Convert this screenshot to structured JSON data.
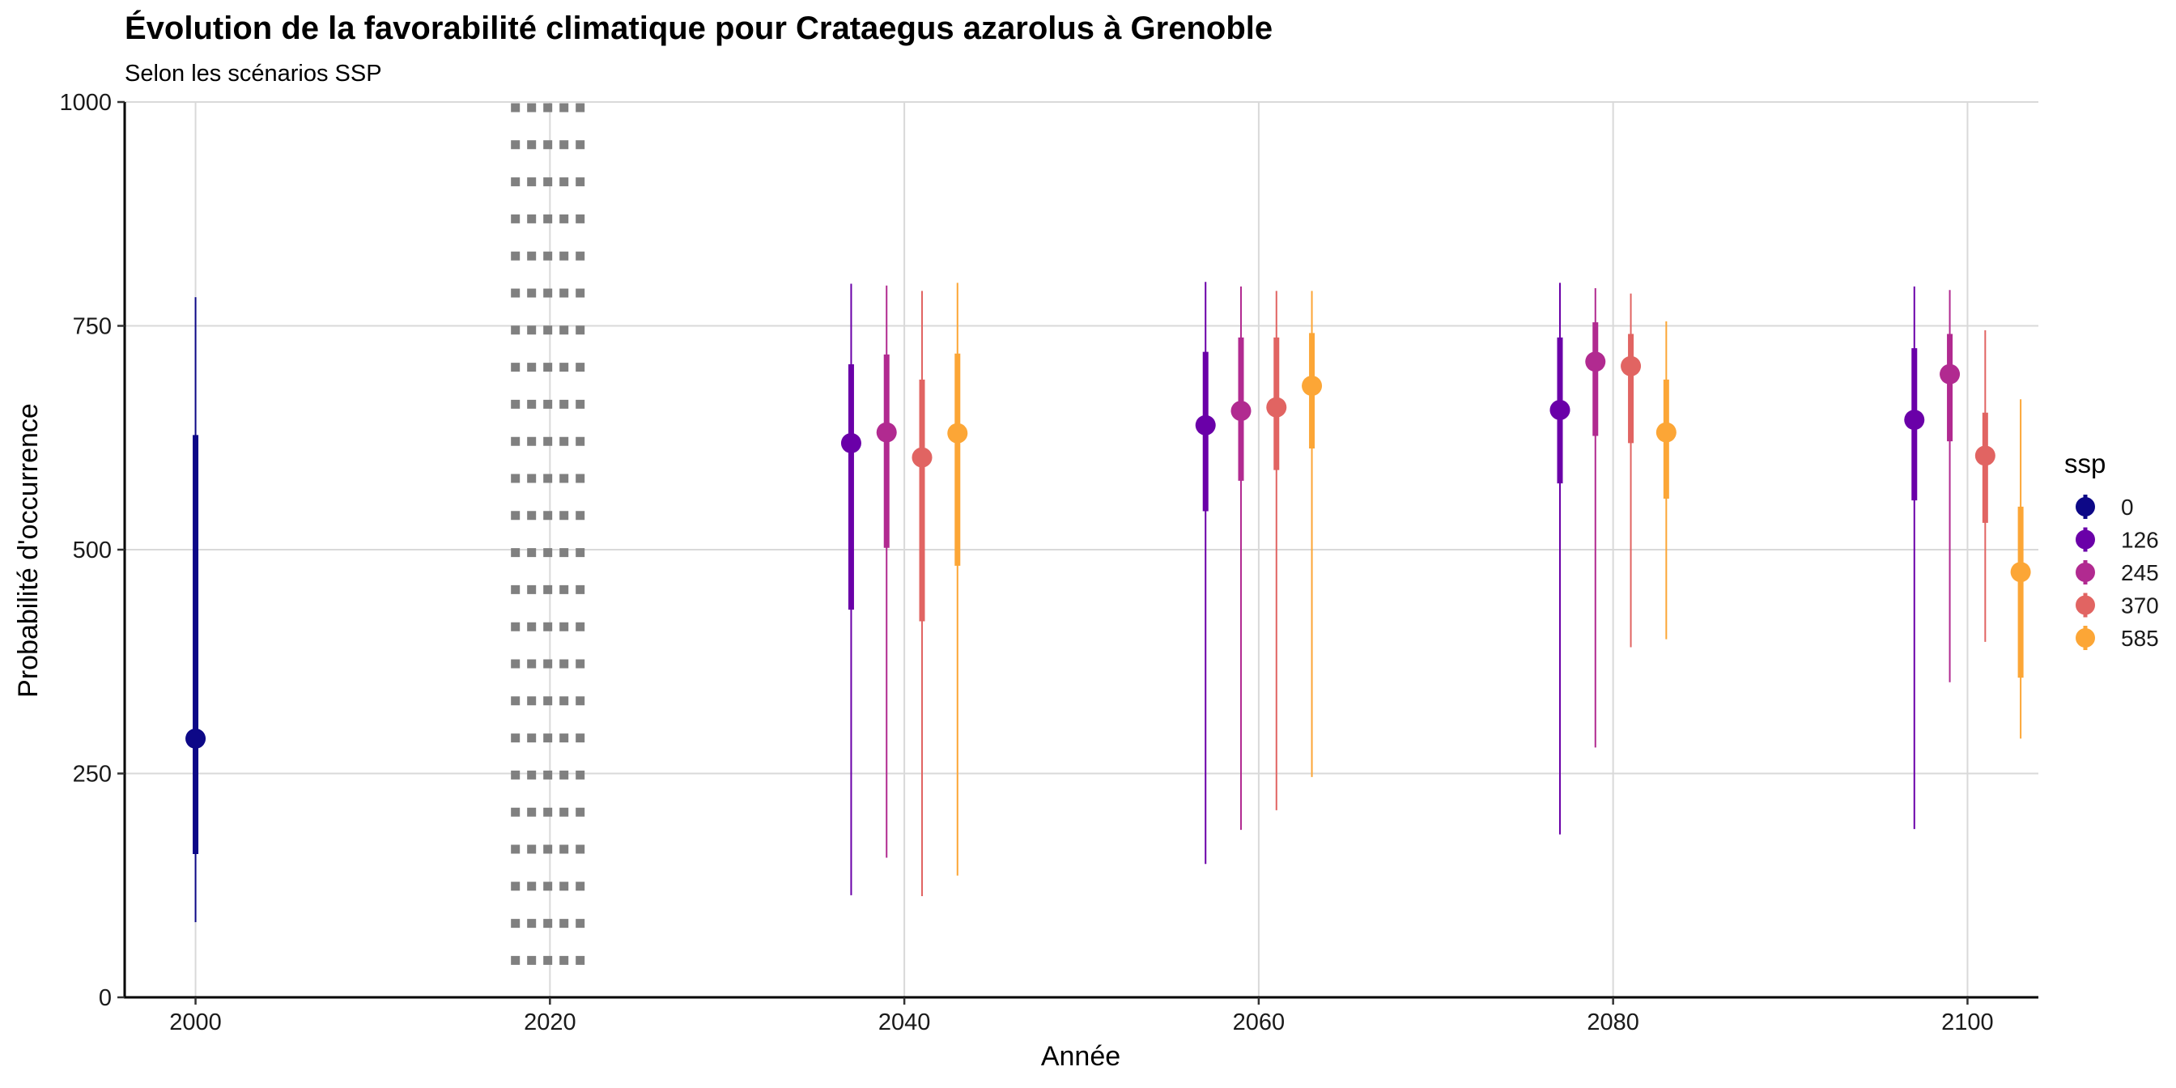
{
  "chart_data": {
    "type": "pointrange",
    "title": "Évolution de la favorabilité climatique pour Crataegus azarolus à Grenoble",
    "subtitle": "Selon les scénarios SSP",
    "xlabel": "Année",
    "ylabel": "Probabilité d'occurrence",
    "xlim": [
      1996,
      2104
    ],
    "ylim": [
      0,
      1000
    ],
    "x_ticks": [
      2000,
      2020,
      2040,
      2060,
      2080,
      2100
    ],
    "y_ticks": [
      0,
      250,
      500,
      750,
      1000
    ],
    "grid": true,
    "reference_band": {
      "x_from": 2017.8,
      "x_to": 2022.2
    },
    "legend": {
      "title": "ssp",
      "position": "right",
      "items": [
        {
          "label": "0",
          "color": "#0d0887"
        },
        {
          "label": "126",
          "color": "#6a00a8"
        },
        {
          "label": "245",
          "color": "#b12a90"
        },
        {
          "label": "370",
          "color": "#e16462"
        },
        {
          "label": "585",
          "color": "#fca636"
        }
      ]
    },
    "series": [
      {
        "name": "0",
        "color": "#0d0887",
        "points": [
          {
            "x": 2000,
            "y": 289,
            "inner": [
              160,
              628
            ],
            "outer": [
              84,
              782
            ]
          }
        ]
      },
      {
        "name": "126",
        "color": "#6a00a8",
        "points": [
          {
            "x": 2037,
            "y": 619,
            "inner": [
              433,
              707
            ],
            "outer": [
              114,
              797
            ]
          },
          {
            "x": 2057,
            "y": 639,
            "inner": [
              543,
              721
            ],
            "outer": [
              149,
              799
            ]
          },
          {
            "x": 2077,
            "y": 656,
            "inner": [
              574,
              737
            ],
            "outer": [
              182,
              798
            ]
          },
          {
            "x": 2097,
            "y": 645,
            "inner": [
              555,
              725
            ],
            "outer": [
              188,
              794
            ]
          }
        ]
      },
      {
        "name": "245",
        "color": "#b12a90",
        "points": [
          {
            "x": 2039,
            "y": 631,
            "inner": [
              502,
              718
            ],
            "outer": [
              156,
              795
            ]
          },
          {
            "x": 2059,
            "y": 655,
            "inner": [
              577,
              737
            ],
            "outer": [
              187,
              794
            ]
          },
          {
            "x": 2079,
            "y": 710,
            "inner": [
              627,
              754
            ],
            "outer": [
              279,
              792
            ]
          },
          {
            "x": 2099,
            "y": 696,
            "inner": [
              621,
              741
            ],
            "outer": [
              352,
              790
            ]
          }
        ]
      },
      {
        "name": "370",
        "color": "#e16462",
        "points": [
          {
            "x": 2041,
            "y": 603,
            "inner": [
              420,
              690
            ],
            "outer": [
              113,
              789
            ]
          },
          {
            "x": 2061,
            "y": 659,
            "inner": [
              589,
              737
            ],
            "outer": [
              209,
              789
            ]
          },
          {
            "x": 2081,
            "y": 705,
            "inner": [
              619,
              741
            ],
            "outer": [
              391,
              786
            ]
          },
          {
            "x": 2101,
            "y": 605,
            "inner": [
              530,
              653
            ],
            "outer": [
              397,
              745
            ]
          }
        ]
      },
      {
        "name": "585",
        "color": "#fca636",
        "points": [
          {
            "x": 2043,
            "y": 630,
            "inner": [
              482,
              719
            ],
            "outer": [
              136,
              798
            ]
          },
          {
            "x": 2063,
            "y": 683,
            "inner": [
              613,
              742
            ],
            "outer": [
              246,
              789
            ]
          },
          {
            "x": 2083,
            "y": 631,
            "inner": [
              557,
              690
            ],
            "outer": [
              400,
              755
            ]
          },
          {
            "x": 2103,
            "y": 475,
            "inner": [
              357,
              548
            ],
            "outer": [
              289,
              668
            ]
          }
        ]
      }
    ]
  }
}
